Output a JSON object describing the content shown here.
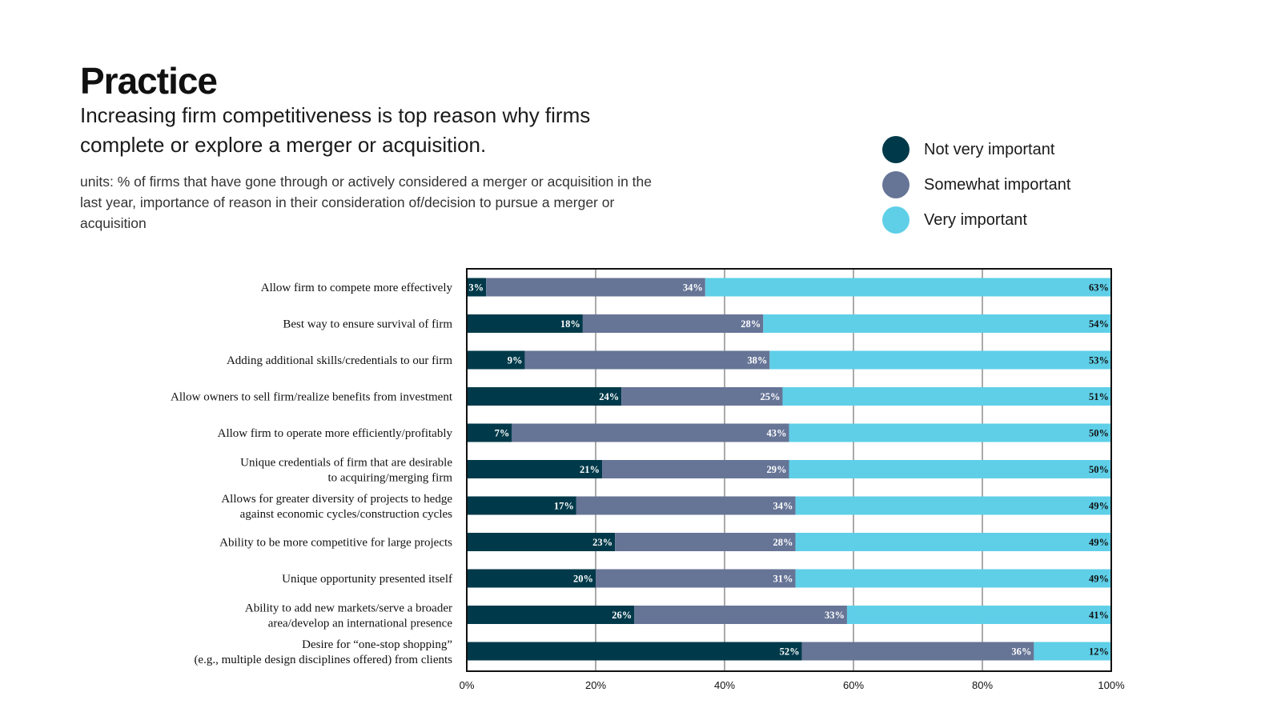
{
  "header": {
    "title": "Practice",
    "subtitle": "Increasing firm competitiveness is top reason why firms complete or explore a merger or acquisition.",
    "units": "units: % of firms that have gone through or actively considered a merger or acquisition in the last year, importance of reason in their consideration of/decision to pursue a merger or acquisition"
  },
  "legend": {
    "items": [
      {
        "label": "Not very important",
        "color": "#003a4a"
      },
      {
        "label": "Somewhat important",
        "color": "#667496"
      },
      {
        "label": "Very important",
        "color": "#5fcfe8"
      }
    ]
  },
  "chart_data": {
    "type": "bar",
    "orientation": "horizontal",
    "stacked": true,
    "categories": [
      [
        "Allow firm to compete more effectively"
      ],
      [
        "Best way to ensure survival of firm"
      ],
      [
        "Adding additional skills/credentials to our firm"
      ],
      [
        "Allow owners to sell firm/realize benefits from investment"
      ],
      [
        "Allow firm to operate more efficiently/profitably"
      ],
      [
        "Unique credentials of firm that are desirable",
        "to acquiring/merging firm"
      ],
      [
        "Allows for greater diversity of projects to hedge",
        "against economic cycles/construction cycles"
      ],
      [
        "Ability to be more competitive for large projects"
      ],
      [
        "Unique opportunity presented itself"
      ],
      [
        "Ability to add new markets/serve a broader",
        "area/develop an international presence"
      ],
      [
        "Desire for “one-stop shopping”",
        "(e.g., multiple design disciplines offered) from clients"
      ]
    ],
    "series": [
      {
        "name": "Not very important",
        "color": "#003a4a",
        "label_color": "#ffffff",
        "values": [
          3,
          18,
          9,
          24,
          7,
          21,
          17,
          23,
          20,
          26,
          52
        ]
      },
      {
        "name": "Somewhat important",
        "color": "#667496",
        "label_color": "#ffffff",
        "values": [
          34,
          28,
          38,
          25,
          43,
          29,
          34,
          28,
          31,
          33,
          36
        ]
      },
      {
        "name": "Very important",
        "color": "#5fcfe8",
        "label_color": "#111111",
        "values": [
          63,
          54,
          53,
          51,
          50,
          50,
          49,
          49,
          49,
          41,
          12
        ]
      }
    ],
    "xlim": [
      0,
      100
    ],
    "xticks": [
      0,
      20,
      40,
      60,
      80,
      100
    ],
    "xtick_labels": [
      "0%",
      "20%",
      "40%",
      "60%",
      "80%",
      "100%"
    ],
    "grid": true,
    "legend_position": "top-right"
  }
}
